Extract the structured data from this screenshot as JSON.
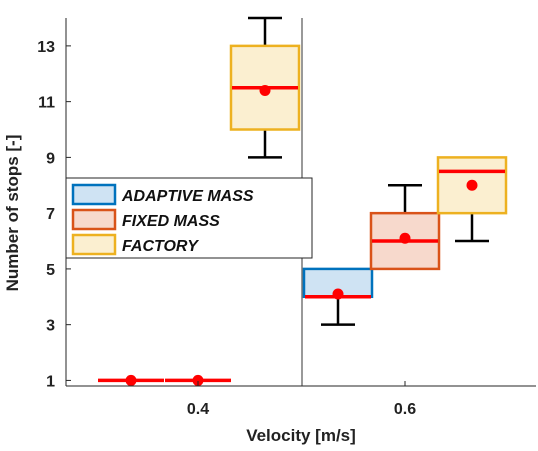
{
  "chart_data": {
    "type": "box",
    "xlabel": "Velocity [m/s]",
    "ylabel": "Number of stops [-]",
    "categories": [
      "0.4",
      "0.6"
    ],
    "ylim": [
      0.8,
      14
    ],
    "yticks": [
      1,
      3,
      5,
      7,
      9,
      11,
      13
    ],
    "grid": false,
    "legend_position": "center-left",
    "series": [
      {
        "name": "ADAPTIVE MASS",
        "color": "#0072BD",
        "fill": "#cfe3f3",
        "boxes": [
          {
            "category": "0.4",
            "min": 1,
            "q1": 1,
            "median": 1,
            "q3": 1,
            "max": 1,
            "mean": 1
          },
          {
            "category": "0.6",
            "min": 3,
            "q1": 4,
            "median": 4,
            "q3": 5,
            "max": 5,
            "mean": 4.1
          }
        ]
      },
      {
        "name": "FIXED MASS",
        "color": "#D95319",
        "fill": "#f7d9cc",
        "boxes": [
          {
            "category": "0.4",
            "min": 1,
            "q1": 1,
            "median": 1,
            "q3": 1,
            "max": 1,
            "mean": 1
          },
          {
            "category": "0.6",
            "min": 5,
            "q1": 5,
            "median": 6,
            "q3": 7,
            "max": 8,
            "mean": 6.1
          }
        ]
      },
      {
        "name": "FACTORY",
        "color": "#EDB120",
        "fill": "#fbefd0",
        "boxes": [
          {
            "category": "0.4",
            "min": 9,
            "q1": 10,
            "median": 11.5,
            "q3": 13,
            "max": 14,
            "mean": 11.4
          },
          {
            "category": "0.6",
            "min": 6,
            "q1": 7,
            "median": 8.5,
            "q3": 9,
            "max": 9,
            "mean": 8
          }
        ]
      }
    ],
    "median_color": "#ff0000",
    "mean_color": "#ff0000",
    "whisker_color": "#000000"
  }
}
